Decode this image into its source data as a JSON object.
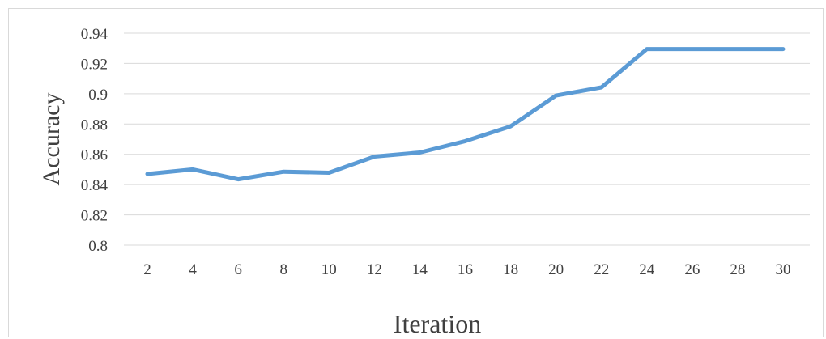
{
  "chart_data": {
    "type": "line",
    "title": "",
    "xlabel": "Iteration",
    "ylabel": "Accuracy",
    "categories": [
      "2",
      "4",
      "6",
      "8",
      "10",
      "12",
      "14",
      "16",
      "18",
      "20",
      "22",
      "24",
      "26",
      "28",
      "30"
    ],
    "series": [
      {
        "values": [
          0.847,
          0.85,
          0.8435,
          0.8485,
          0.8478,
          0.8585,
          0.8612,
          0.8687,
          0.8785,
          0.8988,
          0.9042,
          0.9295,
          0.9295,
          0.9295,
          0.9295
        ],
        "color": "#5b9bd5"
      }
    ],
    "ylim": [
      0.8,
      0.94
    ],
    "yticks": [
      "0.8",
      "0.82",
      "0.84",
      "0.86",
      "0.88",
      "0.9",
      "0.92",
      "0.94"
    ],
    "grid": true,
    "legend": "none"
  }
}
